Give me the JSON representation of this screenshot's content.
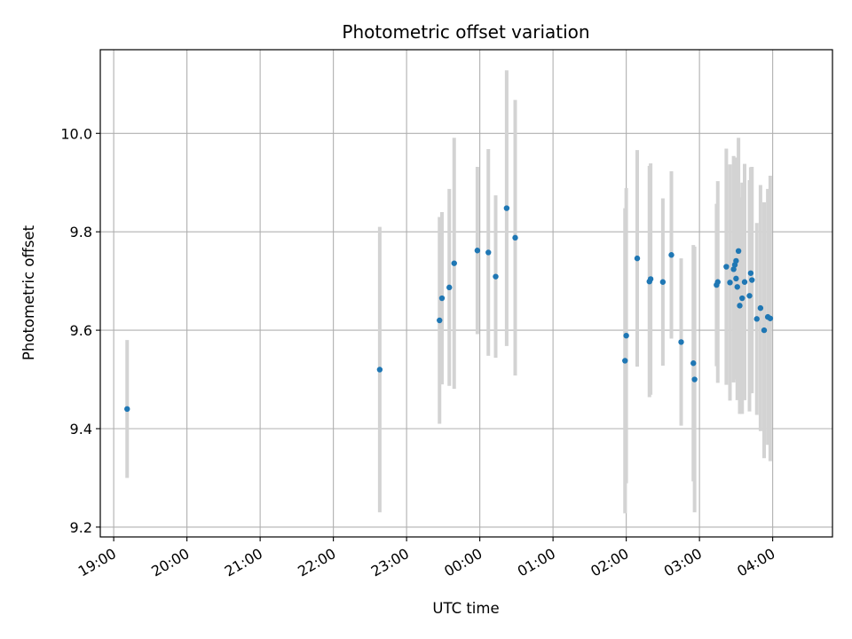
{
  "chart_data": {
    "type": "scatter",
    "title": "Photometric offset variation",
    "xlabel": "UTC time",
    "ylabel": "Photometric offset",
    "x_is_time": true,
    "x_ticks": [
      "19:00",
      "20:00",
      "21:00",
      "22:00",
      "23:00",
      "00:00",
      "01:00",
      "02:00",
      "03:00",
      "04:00"
    ],
    "xlim": [
      "18:49",
      "04:49"
    ],
    "ylim": [
      9.18,
      10.17
    ],
    "y_ticks": [
      9.2,
      9.4,
      9.6,
      9.8,
      10.0
    ],
    "grid": true,
    "colors": {
      "points": "#1f77b4",
      "error_bars": "#d3d3d3",
      "grid": "#b0b0b0",
      "axes": "#000000"
    },
    "series": [
      {
        "x": [
          "19:11",
          "22:38",
          "23:27",
          "23:29",
          "23:35",
          "23:39",
          "23:58",
          "00:07",
          "00:13",
          "00:22",
          "00:29",
          "01:59",
          "02:00",
          "02:09",
          "02:19",
          "02:20",
          "02:30",
          "02:37",
          "02:45",
          "02:55",
          "02:56",
          "03:14",
          "03:15",
          "03:22",
          "03:25",
          "03:28",
          "03:29",
          "03:30",
          "03:30",
          "03:31",
          "03:32",
          "03:33",
          "03:35",
          "03:37",
          "03:41",
          "03:42",
          "03:43",
          "03:47",
          "03:50",
          "03:53",
          "03:56",
          "03:58"
        ],
        "y": [
          9.44,
          9.52,
          9.62,
          9.665,
          9.687,
          9.736,
          9.762,
          9.758,
          9.709,
          9.848,
          9.788,
          9.538,
          9.589,
          9.746,
          9.699,
          9.704,
          9.698,
          9.753,
          9.576,
          9.533,
          9.5,
          9.692,
          9.698,
          9.729,
          9.697,
          9.724,
          9.733,
          9.741,
          9.705,
          9.688,
          9.761,
          9.65,
          9.665,
          9.698,
          9.67,
          9.716,
          9.702,
          9.623,
          9.645,
          9.6,
          9.627,
          9.624
        ],
        "yerr": [
          0.14,
          0.29,
          0.21,
          0.175,
          0.2,
          0.255,
          0.17,
          0.21,
          0.165,
          0.28,
          0.28,
          0.31,
          0.3,
          0.22,
          0.235,
          0.235,
          0.17,
          0.17,
          0.17,
          0.24,
          0.27,
          0.165,
          0.205,
          0.24,
          0.24,
          0.23,
          0.215,
          0.21,
          0.205,
          0.23,
          0.23,
          0.22,
          0.235,
          0.24,
          0.235,
          0.215,
          0.23,
          0.195,
          0.25,
          0.26,
          0.26,
          0.29
        ]
      }
    ]
  }
}
